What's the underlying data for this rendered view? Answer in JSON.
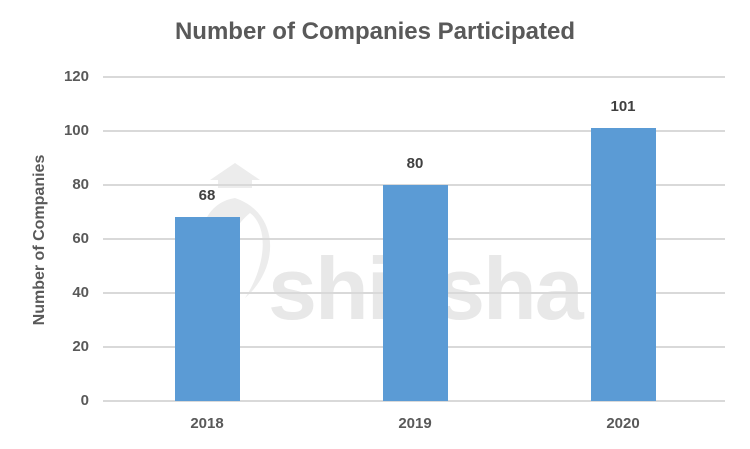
{
  "chart_data": {
    "type": "bar",
    "title": "Number of Companies Participated",
    "xlabel": "",
    "ylabel": "Number of Companies",
    "categories": [
      "2018",
      "2019",
      "2020"
    ],
    "values": [
      68,
      80,
      101
    ],
    "data_labels": [
      "68",
      "80",
      "101"
    ],
    "ylim": [
      0,
      120
    ],
    "yticks": [
      "0",
      "20",
      "40",
      "60",
      "80",
      "100",
      "120"
    ],
    "grid": true,
    "legend": null,
    "bar_color": "#5b9bd5"
  },
  "watermark": {
    "text": "shiksha"
  }
}
